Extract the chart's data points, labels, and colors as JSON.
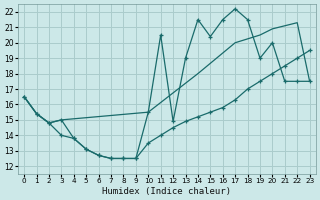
{
  "bg_color": "#cce8e8",
  "grid_color": "#aacccc",
  "line_color": "#1a6b6b",
  "xlabel": "Humidex (Indice chaleur)",
  "xlim": [
    -0.5,
    23.5
  ],
  "ylim": [
    11.5,
    22.5
  ],
  "xticks": [
    0,
    1,
    2,
    3,
    4,
    5,
    6,
    7,
    8,
    9,
    10,
    11,
    12,
    13,
    14,
    15,
    16,
    17,
    18,
    19,
    20,
    21,
    22,
    23
  ],
  "yticks": [
    12,
    13,
    14,
    15,
    16,
    17,
    18,
    19,
    20,
    21,
    22
  ],
  "line1_x": [
    0,
    1,
    2,
    3,
    4,
    5,
    6,
    7,
    8,
    9,
    10,
    11,
    12,
    13,
    14,
    15,
    16,
    17,
    18,
    19,
    20,
    21,
    22,
    23
  ],
  "line1_y": [
    16.5,
    15.4,
    14.8,
    15.0,
    13.8,
    13.1,
    12.7,
    12.5,
    12.5,
    12.5,
    15.5,
    20.5,
    14.9,
    19.0,
    21.5,
    20.4,
    21.5,
    22.2,
    21.5,
    19.0,
    20.0,
    17.5,
    17.5,
    17.5
  ],
  "line2_x": [
    0,
    1,
    2,
    3,
    10,
    14,
    17,
    19,
    20,
    22,
    23
  ],
  "line2_y": [
    16.5,
    15.4,
    14.8,
    15.0,
    15.5,
    18.0,
    20.0,
    20.5,
    20.9,
    21.3,
    17.5
  ],
  "line3_x": [
    0,
    1,
    2,
    3,
    4,
    5,
    6,
    7,
    8,
    9,
    10,
    11,
    12,
    13,
    14,
    15,
    16,
    17,
    18,
    19,
    20,
    21,
    22,
    23
  ],
  "line3_y": [
    16.5,
    15.4,
    14.8,
    14.0,
    13.8,
    13.1,
    12.7,
    12.5,
    12.5,
    12.5,
    13.5,
    14.0,
    14.5,
    14.9,
    15.2,
    15.5,
    15.8,
    16.3,
    17.0,
    17.5,
    18.0,
    18.5,
    19.0,
    19.5
  ]
}
